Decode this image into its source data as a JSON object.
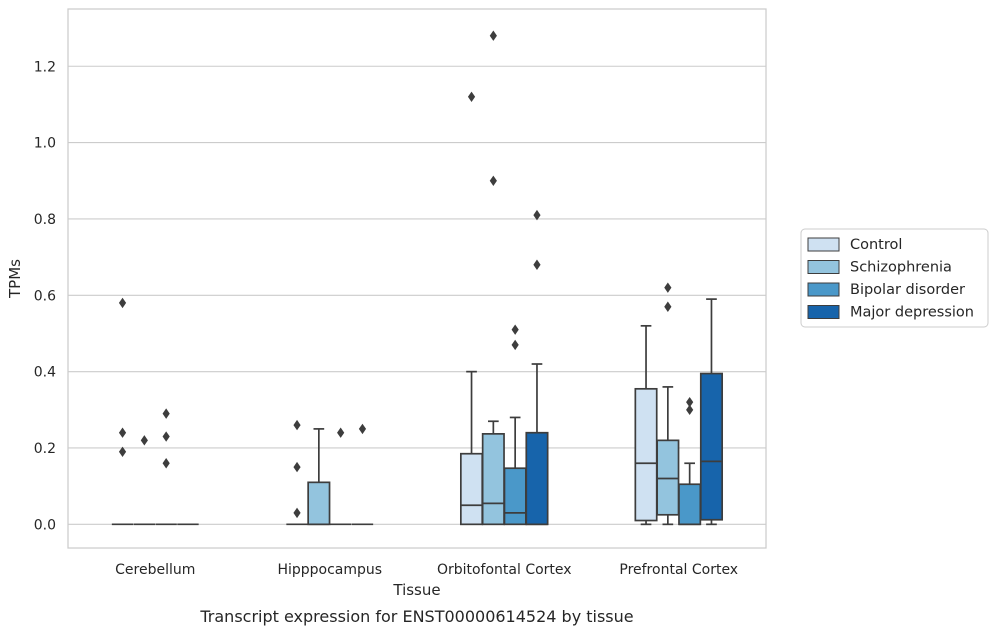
{
  "chart_data": {
    "type": "box",
    "caption": "Transcript expression for ENST00000614524 by tissue",
    "xlabel": "Tissue",
    "ylabel": "TPMs",
    "ylim": [
      -0.062,
      1.35
    ],
    "yticks": [
      0.0,
      0.2,
      0.4,
      0.6,
      0.8,
      1.0,
      1.2
    ],
    "ytick_labels": [
      "0.0",
      "0.2",
      "0.4",
      "0.6",
      "0.8",
      "1.0",
      "1.2"
    ],
    "grid": "horizontal",
    "legend_position": "right",
    "categories": [
      "Cerebellum",
      "Hipppocampus",
      "Orbitofontal Cortex",
      "Prefrontal Cortex"
    ],
    "series": [
      {
        "name": "Control",
        "color": "#cfe1f2",
        "boxes": [
          {
            "q1": 0.0,
            "median": 0.0,
            "q3": 0.0,
            "whislo": 0.0,
            "whishi": 0.0,
            "fliers": [
              0.58,
              0.24,
              0.19
            ]
          },
          {
            "q1": 0.0,
            "median": 0.0,
            "q3": 0.0,
            "whislo": 0.0,
            "whishi": 0.0,
            "fliers": [
              0.26,
              0.15,
              0.03
            ]
          },
          {
            "q1": 0.0,
            "median": 0.05,
            "q3": 0.185,
            "whislo": 0.0,
            "whishi": 0.4,
            "fliers": [
              1.12
            ]
          },
          {
            "q1": 0.01,
            "median": 0.16,
            "q3": 0.355,
            "whislo": 0.0,
            "whishi": 0.52,
            "fliers": []
          }
        ]
      },
      {
        "name": "Schizophrenia",
        "color": "#93c4de",
        "boxes": [
          {
            "q1": 0.0,
            "median": 0.0,
            "q3": 0.0,
            "whislo": 0.0,
            "whishi": 0.0,
            "fliers": [
              0.22
            ]
          },
          {
            "q1": 0.0,
            "median": 0.0,
            "q3": 0.11,
            "whislo": 0.0,
            "whishi": 0.25,
            "fliers": []
          },
          {
            "q1": 0.0,
            "median": 0.055,
            "q3": 0.237,
            "whislo": 0.0,
            "whishi": 0.27,
            "fliers": [
              1.28,
              0.9
            ]
          },
          {
            "q1": 0.025,
            "median": 0.12,
            "q3": 0.22,
            "whislo": 0.0,
            "whishi": 0.36,
            "fliers": [
              0.62,
              0.57
            ]
          }
        ]
      },
      {
        "name": "Bipolar disorder",
        "color": "#4a98c9",
        "boxes": [
          {
            "q1": 0.0,
            "median": 0.0,
            "q3": 0.0,
            "whislo": 0.0,
            "whishi": 0.0,
            "fliers": [
              0.29,
              0.23,
              0.16
            ]
          },
          {
            "q1": 0.0,
            "median": 0.0,
            "q3": 0.0,
            "whislo": 0.0,
            "whishi": 0.0,
            "fliers": [
              0.24
            ]
          },
          {
            "q1": 0.0,
            "median": 0.03,
            "q3": 0.147,
            "whislo": 0.0,
            "whishi": 0.28,
            "fliers": [
              0.51,
              0.47
            ]
          },
          {
            "q1": 0.0,
            "median": 0.0,
            "q3": 0.105,
            "whislo": 0.0,
            "whishi": 0.16,
            "fliers": [
              0.32,
              0.3
            ]
          }
        ]
      },
      {
        "name": "Major depression",
        "color": "#1764ab",
        "boxes": [
          {
            "q1": 0.0,
            "median": 0.0,
            "q3": 0.0,
            "whislo": 0.0,
            "whishi": 0.0,
            "fliers": []
          },
          {
            "q1": 0.0,
            "median": 0.0,
            "q3": 0.0,
            "whislo": 0.0,
            "whishi": 0.0,
            "fliers": [
              0.25
            ]
          },
          {
            "q1": 0.0,
            "median": 0.0,
            "q3": 0.24,
            "whislo": 0.0,
            "whishi": 0.42,
            "fliers": [
              0.81,
              0.68
            ]
          },
          {
            "q1": 0.012,
            "median": 0.165,
            "q3": 0.395,
            "whislo": 0.0,
            "whishi": 0.59,
            "fliers": []
          }
        ]
      }
    ]
  }
}
